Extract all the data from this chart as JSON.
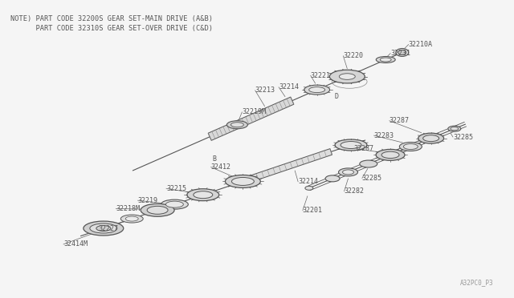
{
  "bg_color": "#f5f5f5",
  "line_color": "#555555",
  "text_color": "#555555",
  "note_line1": "NOTE) PART CODE 32200S GEAR SET-MAIN DRIVE (A&B)",
  "note_line2": "      PART CODE 32310S GEAR SET-OVER DRIVE (C&D)",
  "diagram_id": "A32PC0_P3",
  "figsize": [
    6.4,
    3.72
  ],
  "dpi": 100
}
